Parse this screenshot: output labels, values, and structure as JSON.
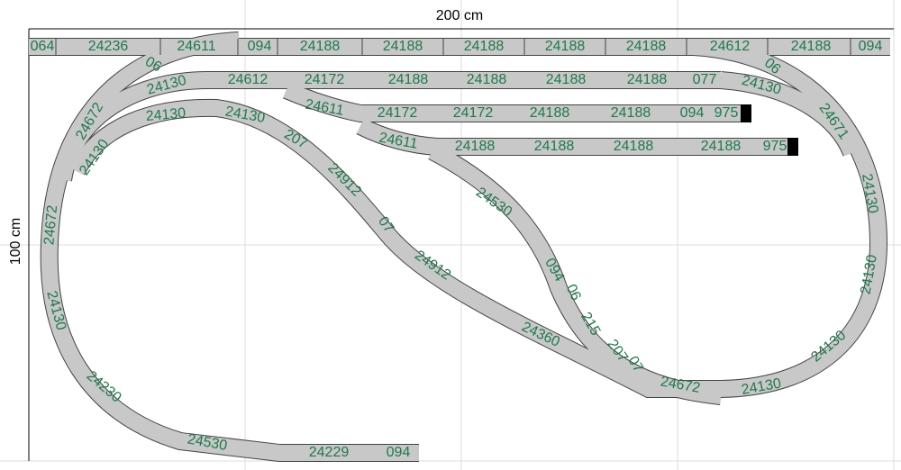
{
  "dimensions": {
    "width_label": "200 cm",
    "height_label": "100 cm"
  },
  "pieces": [
    "064",
    "24236",
    "24611",
    "094",
    "24188",
    "24188",
    "24188",
    "24188",
    "24188",
    "24612",
    "24188",
    "094",
    "06",
    "06",
    "24612",
    "24172",
    "24188",
    "24188",
    "24188",
    "24188",
    "077",
    "24130",
    "24130",
    "24611",
    "24172",
    "24172",
    "24188",
    "24188",
    "094",
    "975",
    "24611",
    "24188",
    "24188",
    "24188",
    "24188",
    "975",
    "24130",
    "24130",
    "207",
    "24912",
    "07",
    "24912",
    "24360",
    "07",
    "24672",
    "24130",
    "24130",
    "24130",
    "24130",
    "24671",
    "24530",
    "094",
    "06",
    "215",
    "207",
    "24672",
    "24130",
    "24672",
    "24130",
    "24230",
    "24530",
    "24229",
    "094"
  ]
}
